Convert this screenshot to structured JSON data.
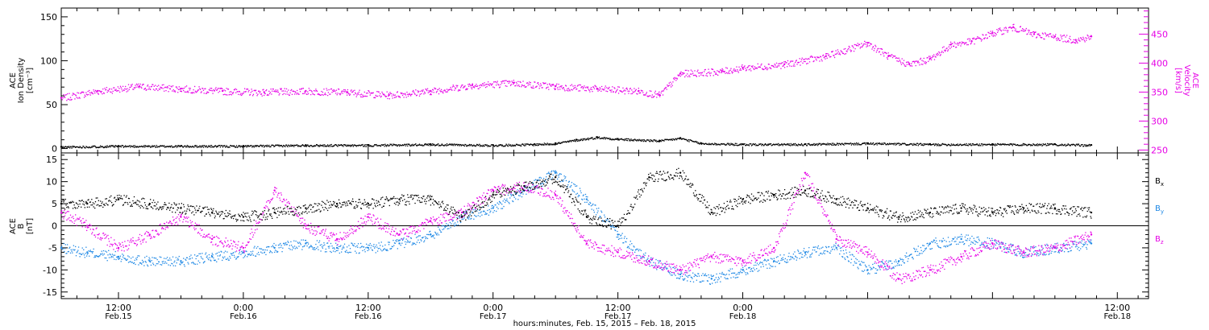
{
  "colors": {
    "black": "#000000",
    "magenta": "#e600e6",
    "blue": "#1e88e5"
  },
  "top_panel": {
    "left_label": [
      "ACE",
      "Ion Density",
      "[cm⁻³]"
    ],
    "right_label": [
      "ACE",
      "Velocity",
      "[km/s]"
    ]
  },
  "bottom_panel": {
    "left_label": [
      "ACE",
      "B",
      "[nT]"
    ],
    "legend": [
      "Bx",
      "By",
      "Bz"
    ]
  },
  "x_axis": {
    "times": [
      "12:00",
      "0:00",
      "12:00",
      "0:00",
      "12:00",
      "0:00",
      "12:00"
    ],
    "dates": [
      "Feb.15",
      "Feb.16",
      "Feb.16",
      "Feb.17",
      "Feb.17",
      "Feb.18",
      "Feb.18"
    ],
    "title": "hours:minutes, Feb. 15, 2015 – Feb. 18, 2015"
  },
  "chart_data": [
    {
      "type": "scatter",
      "title": "",
      "xlabel": "hours:minutes, Feb. 15, 2015 – Feb. 18, 2015",
      "x_unit": "hours since Feb. 15, 2015 00:00",
      "xlim": [
        6.5,
        111
      ],
      "ylim_left": [
        -5,
        160
      ],
      "ylim_right": [
        245,
        495
      ],
      "left_yticks": [
        0,
        50,
        100,
        150
      ],
      "right_yticks": [
        250,
        300,
        350,
        400,
        450
      ],
      "grid": false,
      "series": [
        {
          "name": "ACE Ion Density [cm⁻³]",
          "axis": "left",
          "color": "#000000",
          "x": [
            6.5,
            12,
            18,
            24,
            30,
            36,
            42,
            48,
            52,
            54,
            56,
            58,
            60,
            64,
            66,
            68,
            72,
            78,
            84,
            90,
            96,
            102,
            105.5
          ],
          "y": [
            2,
            3,
            3,
            3,
            4,
            4,
            5,
            4,
            5,
            6,
            10,
            13,
            11,
            9,
            12,
            6,
            5,
            5,
            6,
            5,
            5,
            5,
            4
          ]
        },
        {
          "name": "ACE Velocity [km/s]",
          "axis": "right",
          "color": "#e600e6",
          "x": [
            6.5,
            10,
            14,
            18,
            22,
            26,
            30,
            34,
            38,
            42,
            46,
            50,
            54,
            58,
            62,
            64,
            66,
            70,
            72,
            76,
            80,
            84,
            86,
            88,
            90,
            92,
            94,
            96,
            98,
            100,
            102,
            104,
            105.5
          ],
          "y": [
            340,
            352,
            360,
            356,
            352,
            350,
            352,
            350,
            345,
            352,
            362,
            366,
            360,
            356,
            352,
            345,
            382,
            386,
            392,
            398,
            412,
            435,
            412,
            398,
            408,
            432,
            438,
            452,
            462,
            450,
            446,
            440,
            446
          ]
        }
      ]
    },
    {
      "type": "scatter",
      "title": "",
      "xlabel": "hours:minutes, Feb. 15, 2015 – Feb. 18, 2015",
      "ylabel": "ACE B [nT]",
      "x_unit": "hours since Feb. 15, 2015 00:00",
      "xlim": [
        6.5,
        111
      ],
      "ylim": [
        -16.5,
        16.5
      ],
      "yticks": [
        -15,
        -10,
        -5,
        0,
        5,
        10,
        15
      ],
      "grid": false,
      "series": [
        {
          "name": "Bx",
          "color": "#000000",
          "x": [
            6.5,
            9,
            12,
            15,
            18,
            21,
            24,
            27,
            30,
            33,
            36,
            39,
            42,
            45,
            48,
            51,
            54,
            57,
            60,
            63,
            66,
            69,
            72,
            75,
            78,
            81,
            84,
            87,
            90,
            93,
            96,
            99,
            102,
            105.5
          ],
          "y": [
            5,
            5,
            6,
            5,
            4,
            3,
            2,
            3,
            4,
            5,
            5,
            6,
            6,
            2,
            7,
            9,
            11,
            2,
            0,
            11,
            12,
            3,
            6,
            7,
            8,
            6,
            4,
            2,
            3,
            4,
            3,
            4,
            4,
            3
          ]
        },
        {
          "name": "By",
          "color": "#1e88e5",
          "x": [
            6.5,
            9,
            12,
            15,
            18,
            21,
            24,
            27,
            30,
            33,
            36,
            39,
            42,
            45,
            48,
            51,
            54,
            57,
            60,
            63,
            66,
            69,
            72,
            75,
            78,
            81,
            84,
            87,
            90,
            93,
            96,
            99,
            102,
            105.5
          ],
          "y": [
            -5,
            -6,
            -7,
            -8,
            -8,
            -7,
            -6,
            -5,
            -4,
            -5,
            -5,
            -4,
            -2,
            2,
            4,
            8,
            12,
            6,
            -2,
            -8,
            -11,
            -12,
            -10,
            -8,
            -6,
            -5,
            -10,
            -8,
            -4,
            -3,
            -4,
            -6,
            -5,
            -4
          ]
        },
        {
          "name": "Bz",
          "color": "#e600e6",
          "x": [
            6.5,
            9,
            12,
            15,
            18,
            21,
            24,
            27,
            30,
            33,
            36,
            39,
            42,
            45,
            48,
            51,
            54,
            57,
            60,
            63,
            66,
            69,
            72,
            75,
            78,
            81,
            84,
            87,
            90,
            93,
            96,
            99,
            102,
            105.5
          ],
          "y": [
            3,
            0,
            -5,
            -2,
            2,
            -3,
            -5,
            8,
            0,
            -3,
            2,
            -2,
            1,
            3,
            8,
            9,
            7,
            -4,
            -6,
            -8,
            -10,
            -7,
            -8,
            -5,
            12,
            -3,
            -6,
            -12,
            -10,
            -7,
            -4,
            -6,
            -5,
            -2
          ]
        }
      ]
    }
  ]
}
